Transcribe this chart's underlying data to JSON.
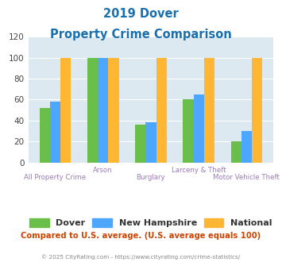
{
  "title_line1": "2019 Dover",
  "title_line2": "Property Crime Comparison",
  "categories": [
    "All Property Crime",
    "Arson",
    "Burglary",
    "Larceny & Theft",
    "Motor Vehicle Theft"
  ],
  "dover": [
    52,
    100,
    36,
    60,
    20
  ],
  "new_hampshire": [
    58,
    100,
    38,
    65,
    30
  ],
  "national": [
    100,
    100,
    100,
    100,
    100
  ],
  "bar_width": 0.22,
  "ylim": [
    0,
    120
  ],
  "yticks": [
    0,
    20,
    40,
    60,
    80,
    100,
    120
  ],
  "color_dover": "#6abf4b",
  "color_nh": "#4da6ff",
  "color_national": "#ffb733",
  "title_color": "#1a6faf",
  "axis_label_color": "#9b7bb5",
  "legend_label_color": "#333333",
  "footnote_color": "#cc4400",
  "copyright_color": "#888888",
  "bg_color": "#dce9f0",
  "footnote": "Compared to U.S. average. (U.S. average equals 100)",
  "copyright": "© 2025 CityRating.com - https://www.cityrating.com/crime-statistics/",
  "top_labels": [
    "",
    "Arson",
    "",
    "Larceny & Theft",
    ""
  ],
  "bottom_labels": [
    "All Property Crime",
    "",
    "Burglary",
    "",
    "Motor Vehicle Theft"
  ]
}
